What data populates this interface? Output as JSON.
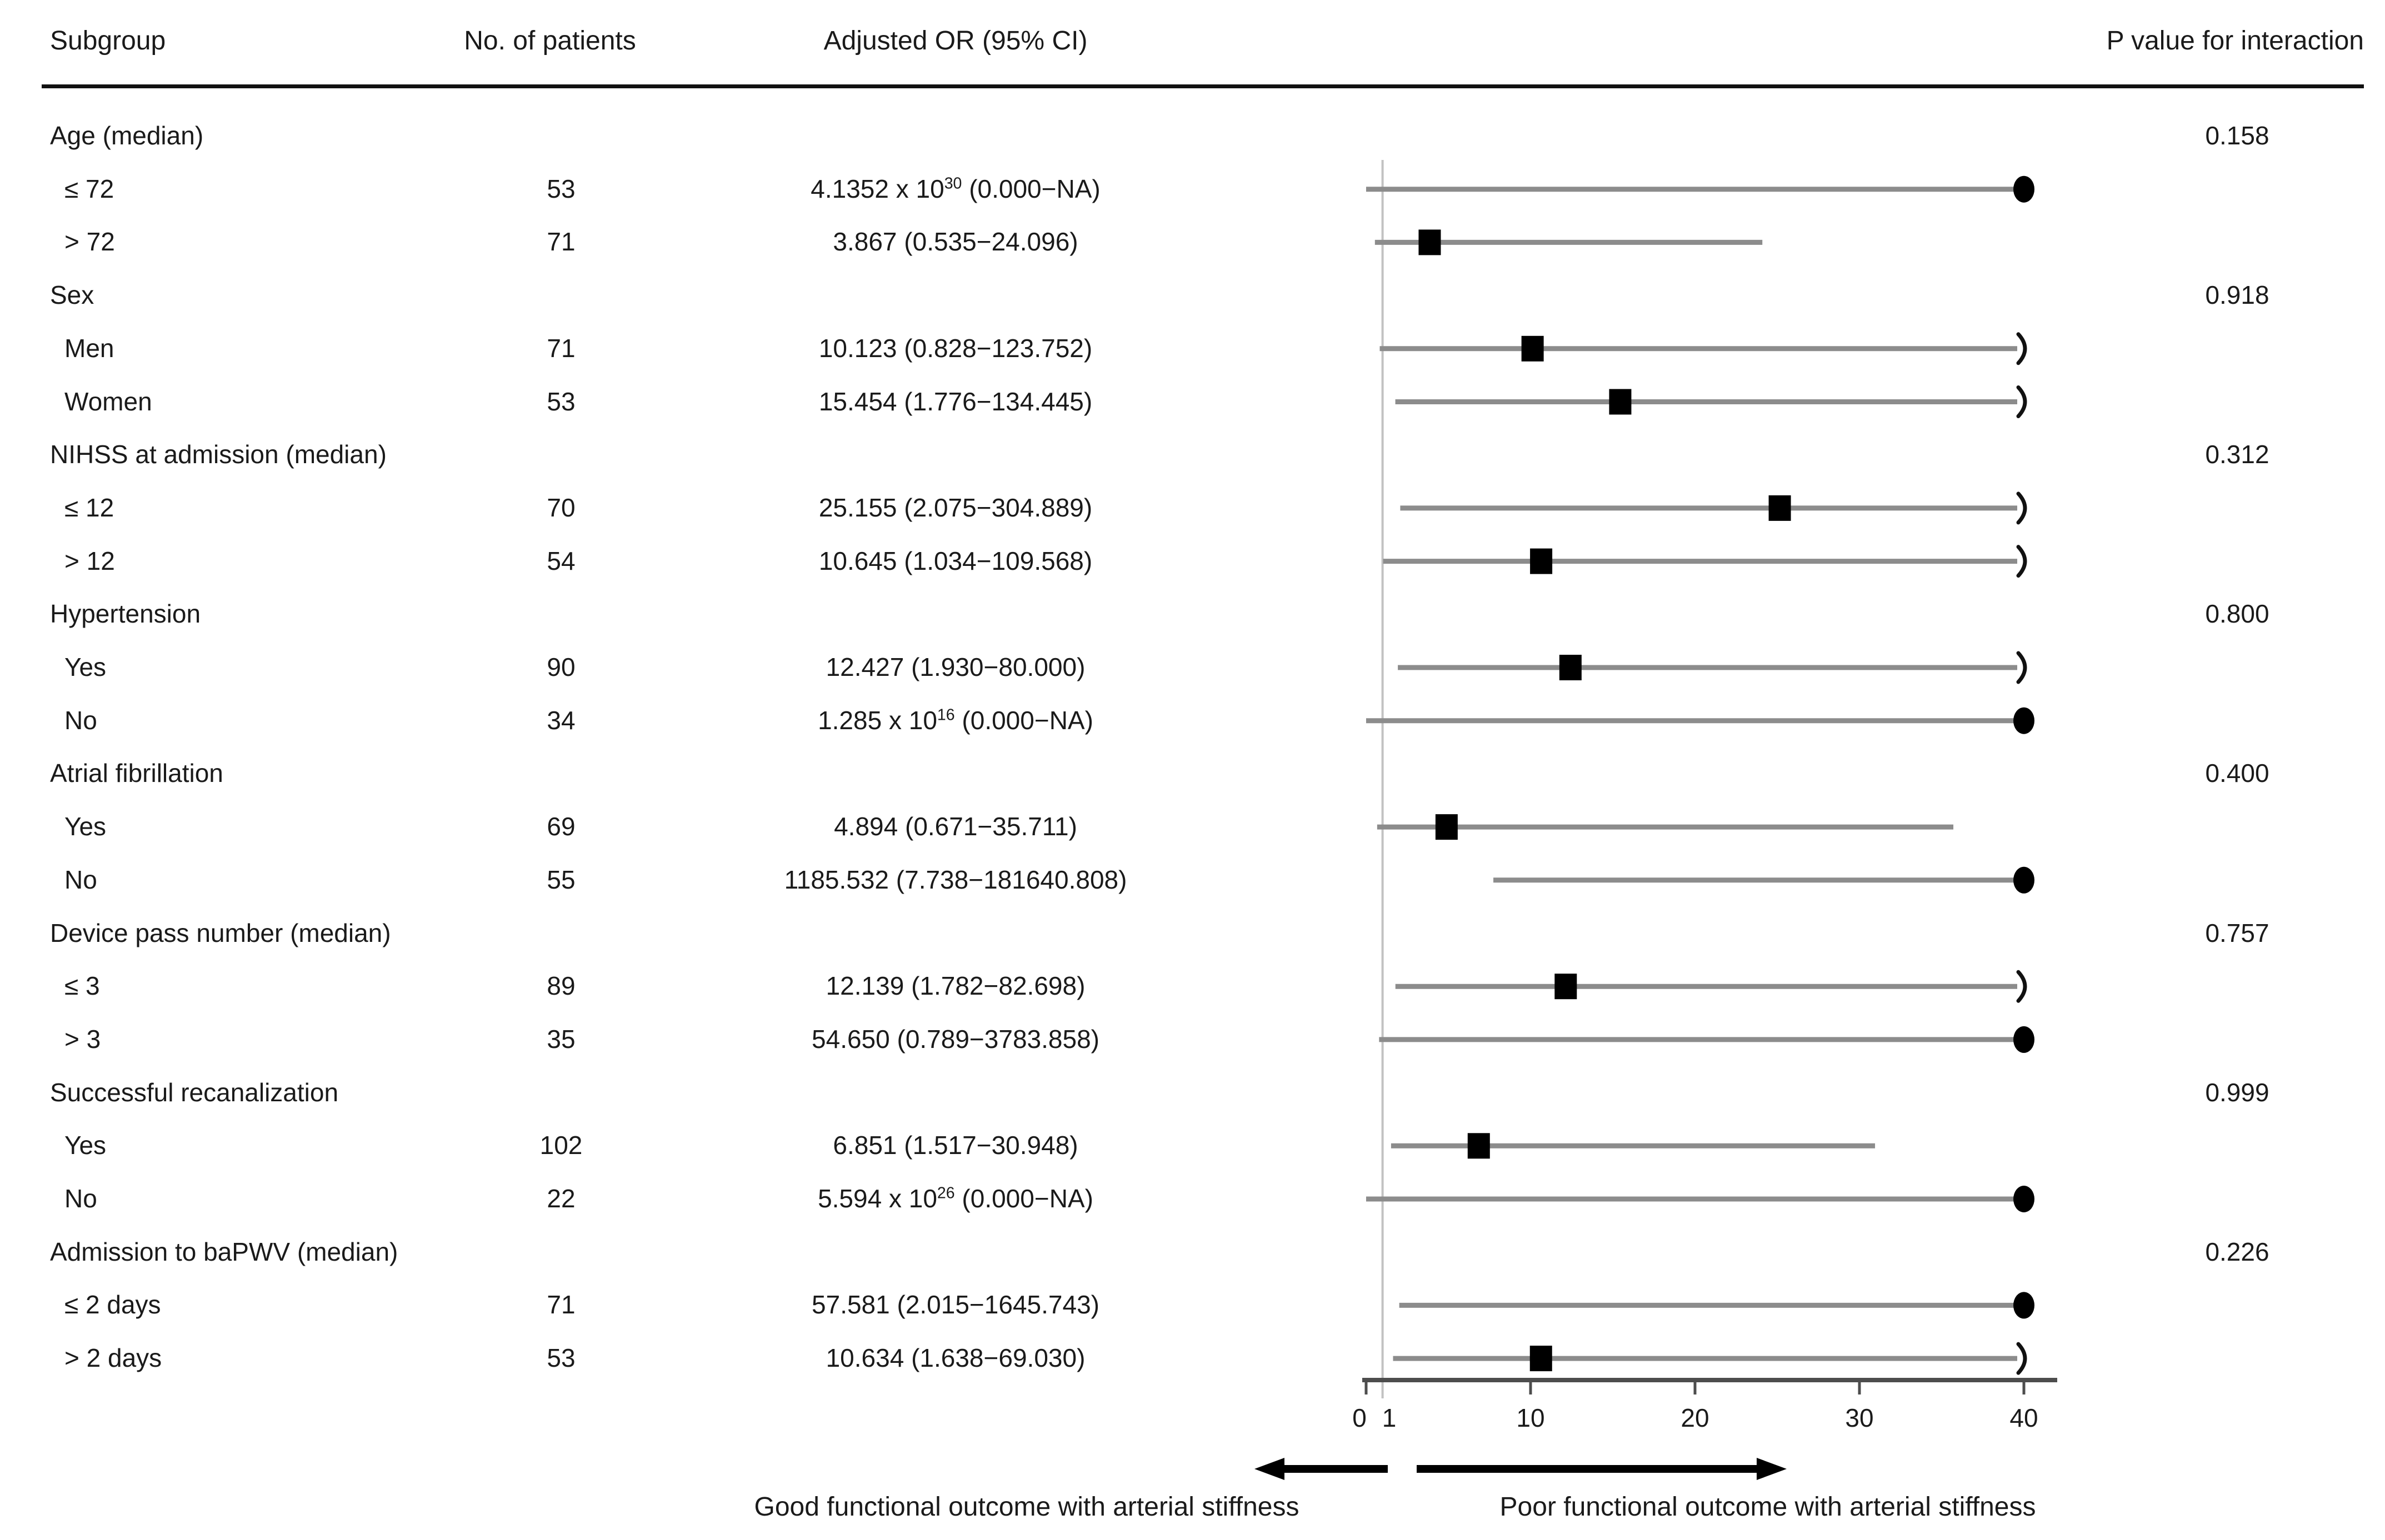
{
  "header": {
    "subgroup": "Subgroup",
    "patients": "No. of patients",
    "adjusted_or": "Adjusted OR (95% CI)",
    "p_interaction": "P value for interaction"
  },
  "footer": {
    "left_label": "Good functional outcome with arterial stiffness",
    "right_label": "Poor functional outcome with arterial stiffness",
    "left_arrow_icon": "arrow-left",
    "right_arrow_icon": "arrow-right"
  },
  "chart_data": {
    "type": "forest",
    "x_axis": {
      "min": 0,
      "max": 40,
      "reference_line": 1,
      "clip_value": 40,
      "ticks": [
        0,
        10,
        20,
        30,
        40
      ],
      "tick_labels": [
        {
          "value": 0,
          "label": "0"
        },
        {
          "value": 1,
          "label": "1"
        },
        {
          "value": 10,
          "label": "10"
        },
        {
          "value": 20,
          "label": "20"
        },
        {
          "value": 30,
          "label": "30"
        },
        {
          "value": 40,
          "label": "40"
        }
      ],
      "grid": false
    },
    "legend": null,
    "rows": [
      {
        "kind": "group",
        "label": "Age (median)",
        "p_interaction": "0.158"
      },
      {
        "kind": "item",
        "label": "≤ 72",
        "n": "53",
        "or_text": "4.1352 x 10^{30} (0.000−NA)",
        "marker": "circle",
        "est": 40,
        "lo": 0,
        "hi": 40,
        "arrow": false
      },
      {
        "kind": "item",
        "label": "> 72",
        "n": "71",
        "or_text": "3.867 (0.535−24.096)",
        "marker": "square",
        "est": 3.867,
        "lo": 0.535,
        "hi": 24.096,
        "arrow": false
      },
      {
        "kind": "group",
        "label": "Sex",
        "p_interaction": "0.918"
      },
      {
        "kind": "item",
        "label": "Men",
        "n": "71",
        "or_text": "10.123 (0.828−123.752)",
        "marker": "square",
        "est": 10.123,
        "lo": 0.828,
        "hi": 40,
        "arrow": true
      },
      {
        "kind": "item",
        "label": "Women",
        "n": "53",
        "or_text": "15.454 (1.776−134.445)",
        "marker": "square",
        "est": 15.454,
        "lo": 1.776,
        "hi": 40,
        "arrow": true
      },
      {
        "kind": "group",
        "label": "NIHSS at admission (median)",
        "p_interaction": "0.312"
      },
      {
        "kind": "item",
        "label": "≤ 12",
        "n": "70",
        "or_text": "25.155 (2.075−304.889)",
        "marker": "square",
        "est": 25.155,
        "lo": 2.075,
        "hi": 40,
        "arrow": true
      },
      {
        "kind": "item",
        "label": "> 12",
        "n": "54",
        "or_text": "10.645 (1.034−109.568)",
        "marker": "square",
        "est": 10.645,
        "lo": 1.034,
        "hi": 40,
        "arrow": true
      },
      {
        "kind": "group",
        "label": "Hypertension",
        "p_interaction": "0.800"
      },
      {
        "kind": "item",
        "label": "Yes",
        "n": "90",
        "or_text": "12.427 (1.930−80.000)",
        "marker": "square",
        "est": 12.427,
        "lo": 1.93,
        "hi": 40,
        "arrow": true
      },
      {
        "kind": "item",
        "label": "No",
        "n": "34",
        "or_text": "1.285 x 10^{16} (0.000−NA)",
        "marker": "circle",
        "est": 40,
        "lo": 0,
        "hi": 40,
        "arrow": false
      },
      {
        "kind": "group",
        "label": "Atrial fibrillation",
        "p_interaction": "0.400"
      },
      {
        "kind": "item",
        "label": "Yes",
        "n": "69",
        "or_text": "4.894 (0.671−35.711)",
        "marker": "square",
        "est": 4.894,
        "lo": 0.671,
        "hi": 35.711,
        "arrow": false
      },
      {
        "kind": "item",
        "label": "No",
        "n": "55",
        "or_text": "1185.532 (7.738−181640.808)",
        "marker": "circle",
        "est": 40,
        "lo": 7.738,
        "hi": 40,
        "arrow": false
      },
      {
        "kind": "group",
        "label": "Device pass number (median)",
        "p_interaction": "0.757"
      },
      {
        "kind": "item",
        "label": "≤ 3",
        "n": "89",
        "or_text": "12.139 (1.782−82.698)",
        "marker": "square",
        "est": 12.139,
        "lo": 1.782,
        "hi": 40,
        "arrow": true
      },
      {
        "kind": "item",
        "label": "> 3",
        "n": "35",
        "or_text": "54.650 (0.789−3783.858)",
        "marker": "circle",
        "est": 40,
        "lo": 0.789,
        "hi": 40,
        "arrow": false
      },
      {
        "kind": "group",
        "label": "Successful recanalization",
        "p_interaction": "0.999"
      },
      {
        "kind": "item",
        "label": "Yes",
        "n": "102",
        "or_text": "6.851 (1.517−30.948)",
        "marker": "square",
        "est": 6.851,
        "lo": 1.517,
        "hi": 30.948,
        "arrow": false
      },
      {
        "kind": "item",
        "label": "No",
        "n": "22",
        "or_text": "5.594 x 10^{26} (0.000−NA)",
        "marker": "circle",
        "est": 40,
        "lo": 0,
        "hi": 40,
        "arrow": false
      },
      {
        "kind": "group",
        "label": "Admission to baPWV (median)",
        "p_interaction": "0.226"
      },
      {
        "kind": "item",
        "label": "≤ 2 days",
        "n": "71",
        "or_text": "57.581 (2.015−1645.743)",
        "marker": "circle",
        "est": 40,
        "lo": 2.015,
        "hi": 40,
        "arrow": false
      },
      {
        "kind": "item",
        "label": "> 2 days",
        "n": "53",
        "or_text": "10.634 (1.638−69.030)",
        "marker": "square",
        "est": 10.634,
        "lo": 1.638,
        "hi": 40,
        "arrow": true
      }
    ],
    "colors": {
      "marker": "#000000",
      "ci_line": "#8c8c8c",
      "axis": "#4d4d4d",
      "reference_line": "#c2c2c2",
      "text": "#1a1a1a",
      "rule": "#111111"
    }
  }
}
